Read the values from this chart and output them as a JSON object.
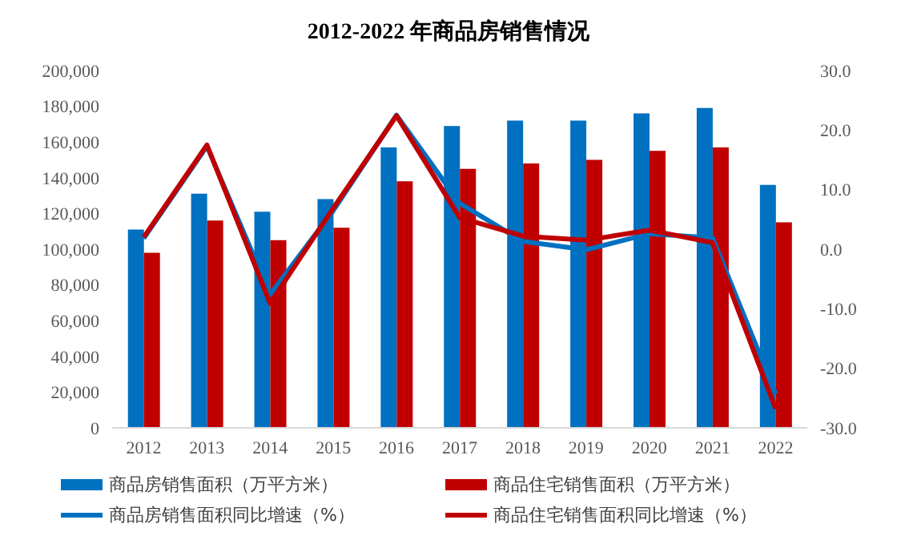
{
  "chart_data": {
    "type": "bar",
    "title": "2012-2022 年商品房销售情况",
    "categories": [
      "2012",
      "2013",
      "2014",
      "2015",
      "2016",
      "2017",
      "2018",
      "2019",
      "2020",
      "2021",
      "2022"
    ],
    "series": [
      {
        "name": "商品房销售面积（万平方米）",
        "color": "#0070c0",
        "values": [
          111000,
          131000,
          121000,
          128000,
          157000,
          169000,
          172000,
          172000,
          176000,
          179000,
          136000
        ]
      },
      {
        "name": "商品住宅销售面积（万平方米）",
        "color": "#c00000",
        "values": [
          98000,
          116000,
          105000,
          112000,
          138000,
          145000,
          148000,
          150000,
          155000,
          157000,
          115000
        ]
      },
      {
        "name": "商品房销售面积同比增速（%）",
        "type": "line",
        "axis": "y2",
        "color": "#0070c0",
        "values": [
          1.8,
          17.3,
          -7.6,
          6.5,
          22.5,
          7.7,
          1.3,
          -0.1,
          2.6,
          1.9,
          -24.3
        ]
      },
      {
        "name": "商品住宅销售面积同比增速（%）",
        "type": "line",
        "axis": "y2",
        "color": "#c00000",
        "values": [
          2.0,
          17.5,
          -9.1,
          6.9,
          22.4,
          5.3,
          2.2,
          1.5,
          3.2,
          1.1,
          -26.8
        ]
      }
    ],
    "ylim": [
      0,
      200000
    ],
    "yticks": [
      {
        "value": 0,
        "label": "0"
      },
      {
        "value": 20000,
        "label": "20,000"
      },
      {
        "value": 40000,
        "label": "40,000"
      },
      {
        "value": 60000,
        "label": "60,000"
      },
      {
        "value": 80000,
        "label": "80,000"
      },
      {
        "value": 100000,
        "label": "100,000"
      },
      {
        "value": 120000,
        "label": "120,000"
      },
      {
        "value": 140000,
        "label": "140,000"
      },
      {
        "value": 160000,
        "label": "160,000"
      },
      {
        "value": 180000,
        "label": "180,000"
      },
      {
        "value": 200000,
        "label": "200,000"
      }
    ],
    "y2lim": [
      -30,
      30
    ],
    "y2ticks": [
      {
        "value": -30,
        "label": "-30.0"
      },
      {
        "value": -20,
        "label": "-20.0"
      },
      {
        "value": -10,
        "label": "-10.0"
      },
      {
        "value": 0,
        "label": "0.0"
      },
      {
        "value": 10,
        "label": "10.0"
      },
      {
        "value": 20,
        "label": "20.0"
      },
      {
        "value": 30,
        "label": "30.0"
      }
    ],
    "grid": false,
    "legend": "bottom",
    "marker": "none",
    "line_style": "solid"
  }
}
